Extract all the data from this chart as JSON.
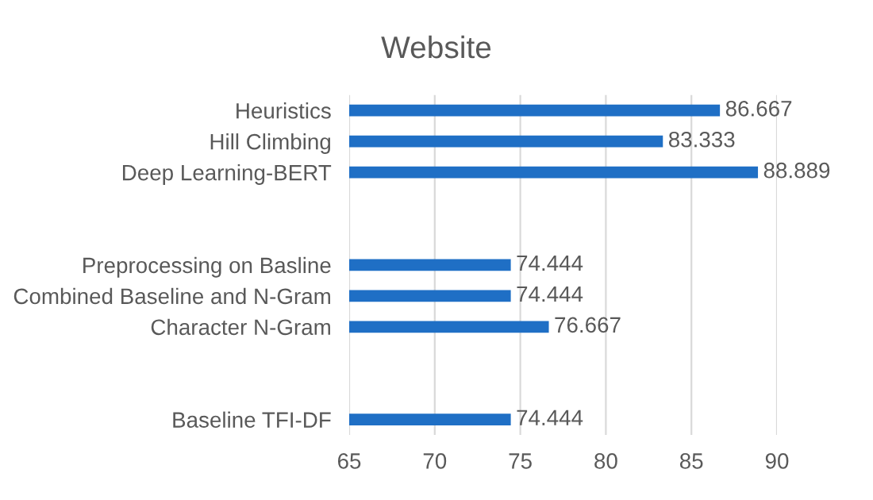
{
  "chart_data": {
    "type": "bar",
    "orientation": "horizontal",
    "title": "Website",
    "categories": [
      "Heuristics",
      "Hill Climbing",
      "Deep Learning-BERT",
      null,
      null,
      "Preprocessing on Basline",
      "Combined Baseline and N-Gram",
      "Character N-Gram",
      null,
      null,
      "Baseline TFI-DF"
    ],
    "values": [
      86.667,
      83.333,
      88.889,
      null,
      null,
      74.444,
      74.444,
      76.667,
      null,
      null,
      74.444
    ],
    "color": "#1f6fc5",
    "xlim": [
      65,
      90
    ],
    "xticks": [
      65,
      70,
      75,
      80,
      85,
      90
    ],
    "grid": "x",
    "data_labels": true
  }
}
